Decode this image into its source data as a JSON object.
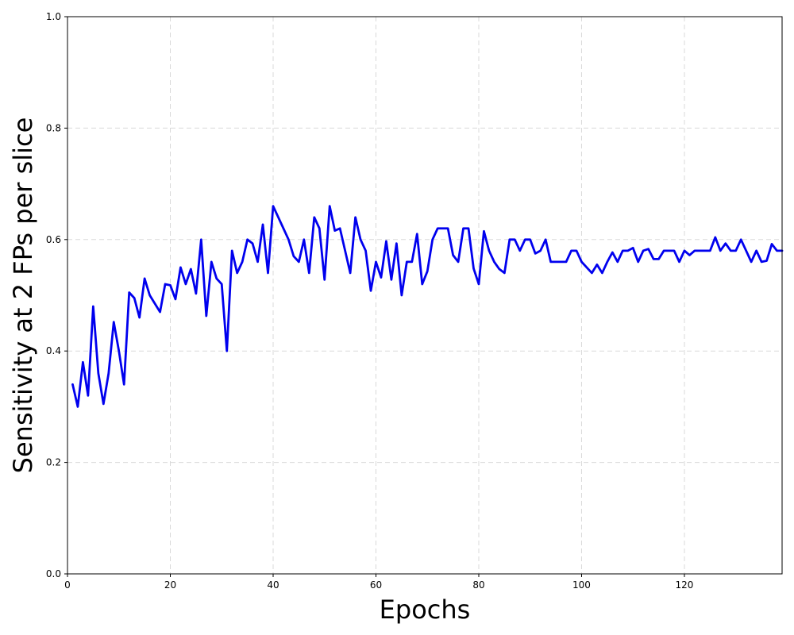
{
  "chart_data": {
    "type": "line",
    "xlabel": "Epochs",
    "ylabel": "Sensitivity at 2 FPs per slice",
    "xlim": [
      0,
      139
    ],
    "ylim": [
      0.0,
      1.0
    ],
    "xticks": [
      0,
      20,
      40,
      60,
      80,
      100,
      120
    ],
    "yticks": [
      0.0,
      0.2,
      0.4,
      0.6,
      0.8,
      1.0
    ],
    "xtick_labels": [
      "0",
      "20",
      "40",
      "60",
      "80",
      "100",
      "120"
    ],
    "ytick_labels": [
      "0.0",
      "0.2",
      "0.4",
      "0.6",
      "0.8",
      "1.0"
    ],
    "grid": true,
    "series": [
      {
        "color": "#0000ee",
        "x": [
          1,
          2,
          3,
          4,
          5,
          6,
          7,
          8,
          9,
          10,
          11,
          12,
          13,
          14,
          15,
          16,
          17,
          18,
          19,
          20,
          21,
          22,
          23,
          24,
          25,
          26,
          27,
          28,
          29,
          30,
          31,
          32,
          33,
          34,
          35,
          36,
          37,
          38,
          39,
          40,
          41,
          42,
          43,
          44,
          45,
          46,
          47,
          48,
          49,
          50,
          51,
          52,
          53,
          54,
          55,
          56,
          57,
          58,
          59,
          60,
          61,
          62,
          63,
          64,
          65,
          66,
          67,
          68,
          69,
          70,
          71,
          72,
          73,
          74,
          75,
          76,
          77,
          78,
          79,
          80,
          81,
          82,
          83,
          84,
          85,
          86,
          87,
          88,
          89,
          90,
          91,
          92,
          93,
          94,
          95,
          96,
          97,
          98,
          99,
          100,
          101,
          102,
          103,
          104,
          105,
          106,
          107,
          108,
          109,
          110,
          111,
          112,
          113,
          114,
          115,
          116,
          117,
          118,
          119,
          120,
          121,
          122,
          123,
          124,
          125,
          126,
          127,
          128,
          129,
          130,
          131,
          132,
          133,
          134,
          135,
          136,
          137,
          138,
          139
        ],
        "values": [
          0.34,
          0.3,
          0.38,
          0.32,
          0.48,
          0.36,
          0.305,
          0.36,
          0.452,
          0.4,
          0.34,
          0.505,
          0.495,
          0.46,
          0.53,
          0.5,
          0.485,
          0.47,
          0.52,
          0.518,
          0.493,
          0.55,
          0.52,
          0.547,
          0.503,
          0.6,
          0.463,
          0.56,
          0.53,
          0.52,
          0.4,
          0.58,
          0.54,
          0.56,
          0.6,
          0.593,
          0.56,
          0.627,
          0.54,
          0.66,
          0.64,
          0.62,
          0.6,
          0.57,
          0.56,
          0.6,
          0.54,
          0.64,
          0.62,
          0.528,
          0.66,
          0.616,
          0.62,
          0.58,
          0.54,
          0.64,
          0.6,
          0.58,
          0.508,
          0.56,
          0.532,
          0.597,
          0.528,
          0.593,
          0.5,
          0.56,
          0.56,
          0.61,
          0.52,
          0.543,
          0.6,
          0.62,
          0.62,
          0.62,
          0.572,
          0.56,
          0.62,
          0.62,
          0.548,
          0.52,
          0.615,
          0.58,
          0.56,
          0.547,
          0.54,
          0.6,
          0.6,
          0.58,
          0.6,
          0.6,
          0.575,
          0.58,
          0.6,
          0.56,
          0.56,
          0.56,
          0.56,
          0.58,
          0.58,
          0.56,
          0.55,
          0.54,
          0.555,
          0.54,
          0.56,
          0.577,
          0.56,
          0.58,
          0.58,
          0.585,
          0.56,
          0.58,
          0.583,
          0.565,
          0.565,
          0.58,
          0.58,
          0.58,
          0.56,
          0.58,
          0.572,
          0.58,
          0.58,
          0.58,
          0.58,
          0.604,
          0.58,
          0.593,
          0.58,
          0.58,
          0.6,
          0.58,
          0.56,
          0.58,
          0.56,
          0.562,
          0.592,
          0.58,
          0.58
        ]
      }
    ]
  }
}
